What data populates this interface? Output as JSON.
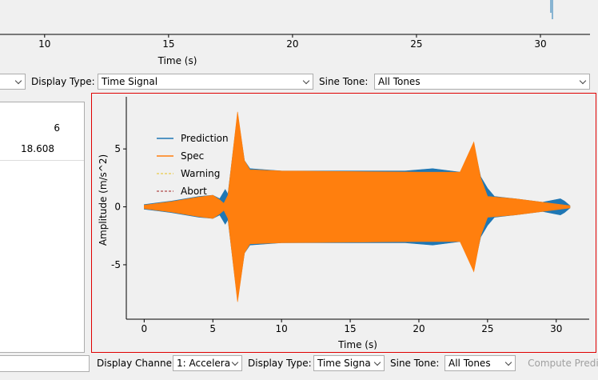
{
  "top_chart": {
    "xlabel": "Time (s)",
    "xlim": [
      8.2,
      32.0
    ],
    "xticks": [
      10,
      15,
      20,
      25,
      30
    ]
  },
  "toolbar": {
    "display_type_label": "Display Type:",
    "display_type": "Time Signal",
    "sine_tone_label": "Sine Tone:",
    "sine_tone": "All Tones"
  },
  "table": {
    "rows": [
      [
        "6"
      ],
      [
        "18.608"
      ]
    ]
  },
  "chart_data": {
    "type": "line",
    "xlabel": "Time (s)",
    "ylabel": "Amplitude (m/s^2)",
    "xlim": [
      -1.3,
      32.4
    ],
    "ylim": [
      -9.7,
      9.5
    ],
    "xticks": [
      0,
      5,
      10,
      15,
      20,
      25,
      30
    ],
    "yticks": [
      5,
      0,
      -5
    ],
    "series": [
      {
        "name": "Prediction",
        "color": "#1f77b4",
        "x": [
          0,
          1,
          2,
          3,
          4,
          5,
          5.5,
          5.9,
          6.1,
          6.8,
          7.3,
          7.7,
          10,
          15,
          19,
          21,
          23,
          24,
          24.5,
          25,
          25.5,
          27,
          29,
          30.3,
          30.6,
          31
        ],
        "values": [
          0.2,
          0.35,
          0.5,
          0.7,
          0.9,
          1.0,
          0.7,
          1.5,
          1.1,
          8.0,
          4.0,
          3.3,
          3.1,
          3.1,
          3.1,
          3.3,
          3.0,
          5.3,
          2.6,
          1.6,
          0.9,
          0.7,
          0.4,
          0.7,
          0.5,
          0.1
        ]
      },
      {
        "name": "Spec",
        "color": "#ff7f0e",
        "x": [
          0,
          1,
          2,
          3,
          4,
          5,
          5.5,
          5.8,
          6.1,
          6.8,
          7.3,
          7.7,
          10,
          15,
          20,
          23,
          24,
          24.5,
          25,
          25.5,
          27,
          29,
          31
        ],
        "values": [
          0.15,
          0.3,
          0.45,
          0.65,
          0.85,
          1.0,
          0.6,
          0.3,
          1.0,
          8.2,
          4.0,
          3.2,
          3.1,
          3.05,
          3.0,
          3.0,
          5.6,
          2.5,
          0.9,
          0.85,
          0.7,
          0.4,
          0.1
        ]
      },
      {
        "name": "Warning",
        "color": "#e8c020"
      },
      {
        "name": "Abort",
        "color": "#a02020"
      }
    ]
  },
  "bottom_bar": {
    "display_channel_label": "Display Channel",
    "display_channel": "1: Accelera",
    "display_type_label": "Display Type:",
    "display_type": "Time Signa",
    "sine_tone_label": "Sine Tone:",
    "sine_tone": "All Tones",
    "button": "Compute Predict"
  }
}
